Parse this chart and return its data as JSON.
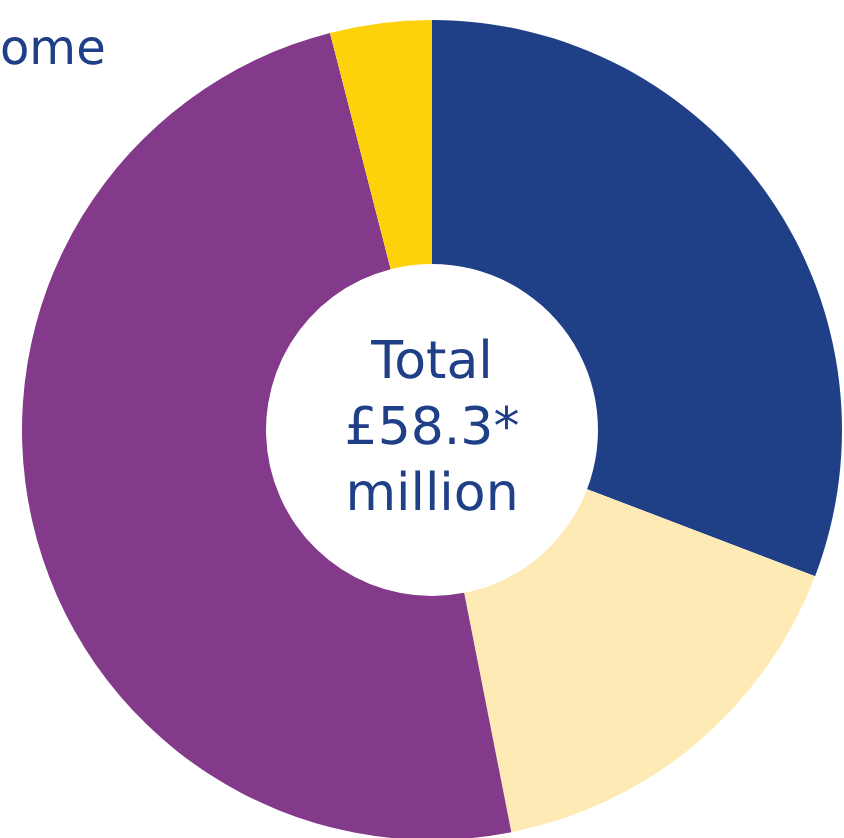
{
  "chart_data": {
    "type": "donut",
    "title": "ome",
    "categories": [
      null,
      null,
      null,
      null
    ],
    "values": [
      30.8,
      16.1,
      49.1,
      4.0
    ],
    "colors": [
      "#1f3f87",
      "#fdeab4",
      "#843a8a",
      "#fdd20a"
    ],
    "annotations": [
      "Total\n£58.3*\nmillion"
    ],
    "legend": false
  }
}
